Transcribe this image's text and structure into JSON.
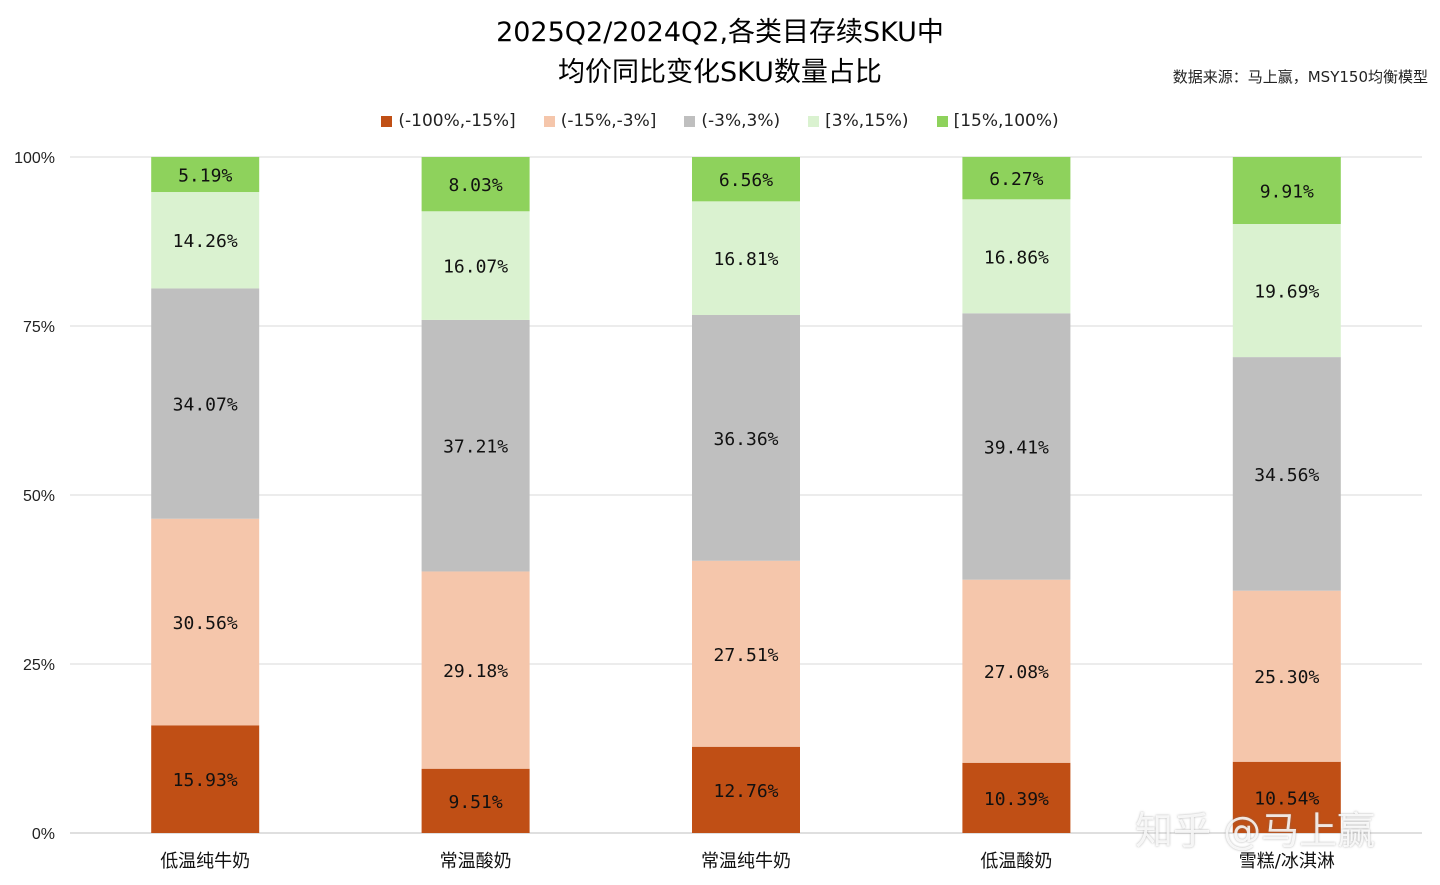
{
  "chart_data": {
    "type": "bar",
    "stacked": true,
    "title_line1": "2025Q2/2024Q2,各类目存续SKU中",
    "title_line2": "均价同比变化SKU数量占比",
    "source": "数据来源：马上赢，MSY150均衡模型",
    "categories": [
      "低温纯牛奶",
      "常温酸奶",
      "常温纯牛奶",
      "低温酸奶",
      "雪糕/冰淇淋"
    ],
    "series": [
      {
        "name": "(-100%,-15%]",
        "color": "#C04F15",
        "values": [
          15.93,
          9.51,
          12.76,
          10.39,
          10.54
        ]
      },
      {
        "name": "(-15%,-3%]",
        "color": "#F5C6AB",
        "values": [
          30.56,
          29.18,
          27.51,
          27.08,
          25.3
        ]
      },
      {
        "name": "(-3%,3%)",
        "color": "#BFBFBF",
        "values": [
          34.07,
          37.21,
          36.36,
          39.41,
          34.56
        ]
      },
      {
        "name": "[3%,15%)",
        "color": "#DAF2D0",
        "values": [
          14.26,
          16.07,
          16.81,
          16.86,
          19.69
        ]
      },
      {
        "name": "[15%,100%)",
        "color": "#8ED25C",
        "values": [
          5.19,
          8.03,
          6.56,
          6.27,
          9.91
        ]
      }
    ],
    "yticks": [
      "0%",
      "25%",
      "50%",
      "75%",
      "100%"
    ],
    "ylim": [
      0,
      100
    ],
    "grid": true,
    "legend_position": "top",
    "watermark": "知乎 @马上赢"
  }
}
